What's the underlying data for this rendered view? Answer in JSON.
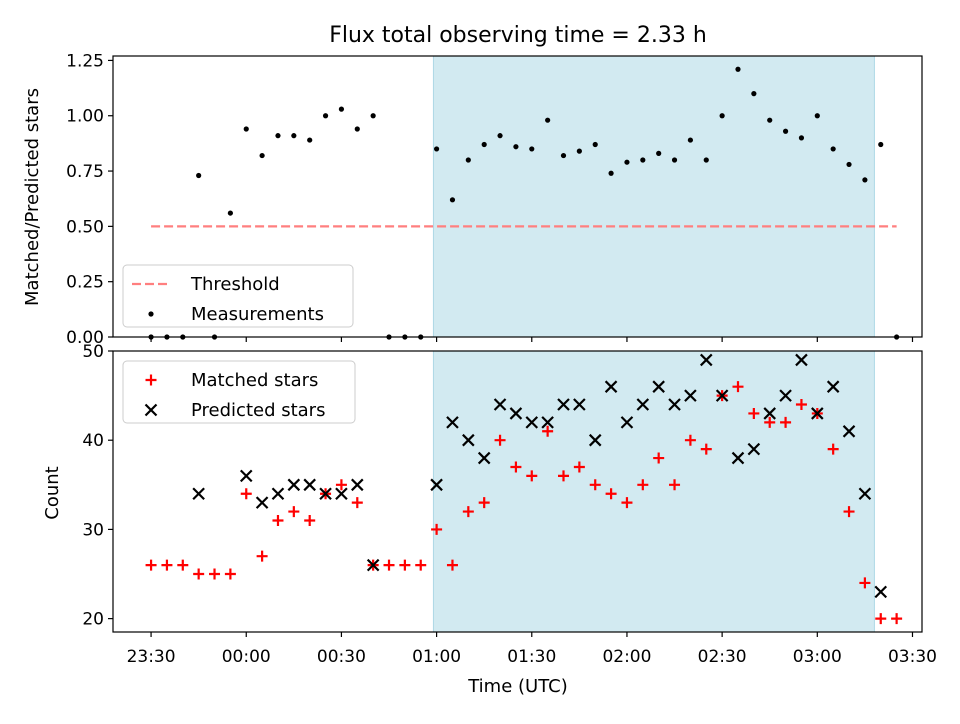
{
  "chart_data": {
    "type": "scatter",
    "title": "Flux total observing time = 2.33 h",
    "xlabel": "Time (UTC)",
    "x_tick_labels": [
      "23:30",
      "00:00",
      "00:30",
      "01:00",
      "01:30",
      "02:00",
      "02:30",
      "03:00",
      "03:30"
    ],
    "x_tick_minutes": [
      -30,
      0,
      30,
      60,
      90,
      120,
      150,
      180,
      210
    ],
    "xlim_minutes": [
      -42,
      213
    ],
    "shaded_span_minutes": [
      59,
      198
    ],
    "shade_color": "#add8e6",
    "panels": [
      {
        "ylabel": "Matched/Predicted stars",
        "ylim": [
          0,
          1.27
        ],
        "y_ticks": [
          0.0,
          0.25,
          0.5,
          0.75,
          1.0,
          1.25
        ],
        "y_tick_labels": [
          "0.00",
          "0.25",
          "0.50",
          "0.75",
          "1.00",
          "1.25"
        ],
        "threshold": {
          "name": "Threshold",
          "value": 0.5,
          "x_range": [
            -30,
            205
          ],
          "color": "#ff7f7f"
        },
        "series": [
          {
            "name": "Measurements",
            "marker": "point",
            "color": "#000000",
            "points": [
              [
                -30,
                0.0
              ],
              [
                -25,
                0.0
              ],
              [
                -20,
                0.0
              ],
              [
                -15,
                0.73
              ],
              [
                -10,
                0.0
              ],
              [
                -5,
                0.56
              ],
              [
                0,
                0.94
              ],
              [
                5,
                0.82
              ],
              [
                10,
                0.91
              ],
              [
                15,
                0.91
              ],
              [
                20,
                0.89
              ],
              [
                25,
                1.0
              ],
              [
                30,
                1.03
              ],
              [
                35,
                0.94
              ],
              [
                40,
                1.0
              ],
              [
                45,
                0.0
              ],
              [
                50,
                0.0
              ],
              [
                55,
                0.0
              ],
              [
                60,
                0.85
              ],
              [
                65,
                0.62
              ],
              [
                70,
                0.8
              ],
              [
                75,
                0.87
              ],
              [
                80,
                0.91
              ],
              [
                85,
                0.86
              ],
              [
                90,
                0.85
              ],
              [
                95,
                0.98
              ],
              [
                100,
                0.82
              ],
              [
                105,
                0.84
              ],
              [
                110,
                0.87
              ],
              [
                115,
                0.74
              ],
              [
                120,
                0.79
              ],
              [
                125,
                0.8
              ],
              [
                130,
                0.83
              ],
              [
                135,
                0.8
              ],
              [
                140,
                0.89
              ],
              [
                145,
                0.8
              ],
              [
                150,
                1.0
              ],
              [
                155,
                1.21
              ],
              [
                160,
                1.1
              ],
              [
                165,
                0.98
              ],
              [
                170,
                0.93
              ],
              [
                175,
                0.9
              ],
              [
                180,
                1.0
              ],
              [
                185,
                0.85
              ],
              [
                190,
                0.78
              ],
              [
                195,
                0.71
              ],
              [
                200,
                0.87
              ],
              [
                205,
                0.0
              ]
            ]
          }
        ],
        "legend": {
          "position": "lower left",
          "entries": [
            "Threshold",
            "Measurements"
          ]
        }
      },
      {
        "ylabel": "Count",
        "ylim": [
          18.5,
          50
        ],
        "y_ticks": [
          20,
          30,
          40,
          50
        ],
        "y_tick_labels": [
          "20",
          "30",
          "40",
          "50"
        ],
        "series": [
          {
            "name": "Matched stars",
            "marker": "plus",
            "color": "#ff0000",
            "points": [
              [
                -30,
                26
              ],
              [
                -25,
                26
              ],
              [
                -20,
                26
              ],
              [
                -15,
                25
              ],
              [
                -10,
                25
              ],
              [
                -5,
                25
              ],
              [
                0,
                34
              ],
              [
                5,
                27
              ],
              [
                10,
                31
              ],
              [
                15,
                32
              ],
              [
                20,
                31
              ],
              [
                25,
                34
              ],
              [
                30,
                35
              ],
              [
                35,
                33
              ],
              [
                40,
                26
              ],
              [
                45,
                26
              ],
              [
                50,
                26
              ],
              [
                55,
                26
              ],
              [
                60,
                30
              ],
              [
                65,
                26
              ],
              [
                70,
                32
              ],
              [
                75,
                33
              ],
              [
                80,
                40
              ],
              [
                85,
                37
              ],
              [
                90,
                36
              ],
              [
                95,
                41
              ],
              [
                100,
                36
              ],
              [
                105,
                37
              ],
              [
                110,
                35
              ],
              [
                115,
                34
              ],
              [
                120,
                33
              ],
              [
                125,
                35
              ],
              [
                130,
                38
              ],
              [
                135,
                35
              ],
              [
                140,
                40
              ],
              [
                145,
                39
              ],
              [
                150,
                45
              ],
              [
                155,
                46
              ],
              [
                160,
                43
              ],
              [
                165,
                42
              ],
              [
                170,
                42
              ],
              [
                175,
                44
              ],
              [
                180,
                43
              ],
              [
                185,
                39
              ],
              [
                190,
                32
              ],
              [
                195,
                24
              ],
              [
                200,
                20
              ],
              [
                205,
                20
              ]
            ]
          },
          {
            "name": "Predicted stars",
            "marker": "x",
            "color": "#000000",
            "points": [
              [
                -15,
                34
              ],
              [
                0,
                36
              ],
              [
                5,
                33
              ],
              [
                10,
                34
              ],
              [
                15,
                35
              ],
              [
                20,
                35
              ],
              [
                25,
                34
              ],
              [
                30,
                34
              ],
              [
                35,
                35
              ],
              [
                40,
                26
              ],
              [
                60,
                35
              ],
              [
                65,
                42
              ],
              [
                70,
                40
              ],
              [
                75,
                38
              ],
              [
                80,
                44
              ],
              [
                85,
                43
              ],
              [
                90,
                42
              ],
              [
                95,
                42
              ],
              [
                100,
                44
              ],
              [
                105,
                44
              ],
              [
                110,
                40
              ],
              [
                115,
                46
              ],
              [
                120,
                42
              ],
              [
                125,
                44
              ],
              [
                130,
                46
              ],
              [
                135,
                44
              ],
              [
                140,
                45
              ],
              [
                145,
                49
              ],
              [
                150,
                45
              ],
              [
                155,
                38
              ],
              [
                160,
                39
              ],
              [
                165,
                43
              ],
              [
                170,
                45
              ],
              [
                175,
                49
              ],
              [
                180,
                43
              ],
              [
                185,
                46
              ],
              [
                190,
                41
              ],
              [
                195,
                34
              ],
              [
                200,
                23
              ]
            ]
          }
        ],
        "legend": {
          "position": "upper left",
          "entries": [
            "Matched stars",
            "Predicted stars"
          ]
        }
      }
    ]
  }
}
